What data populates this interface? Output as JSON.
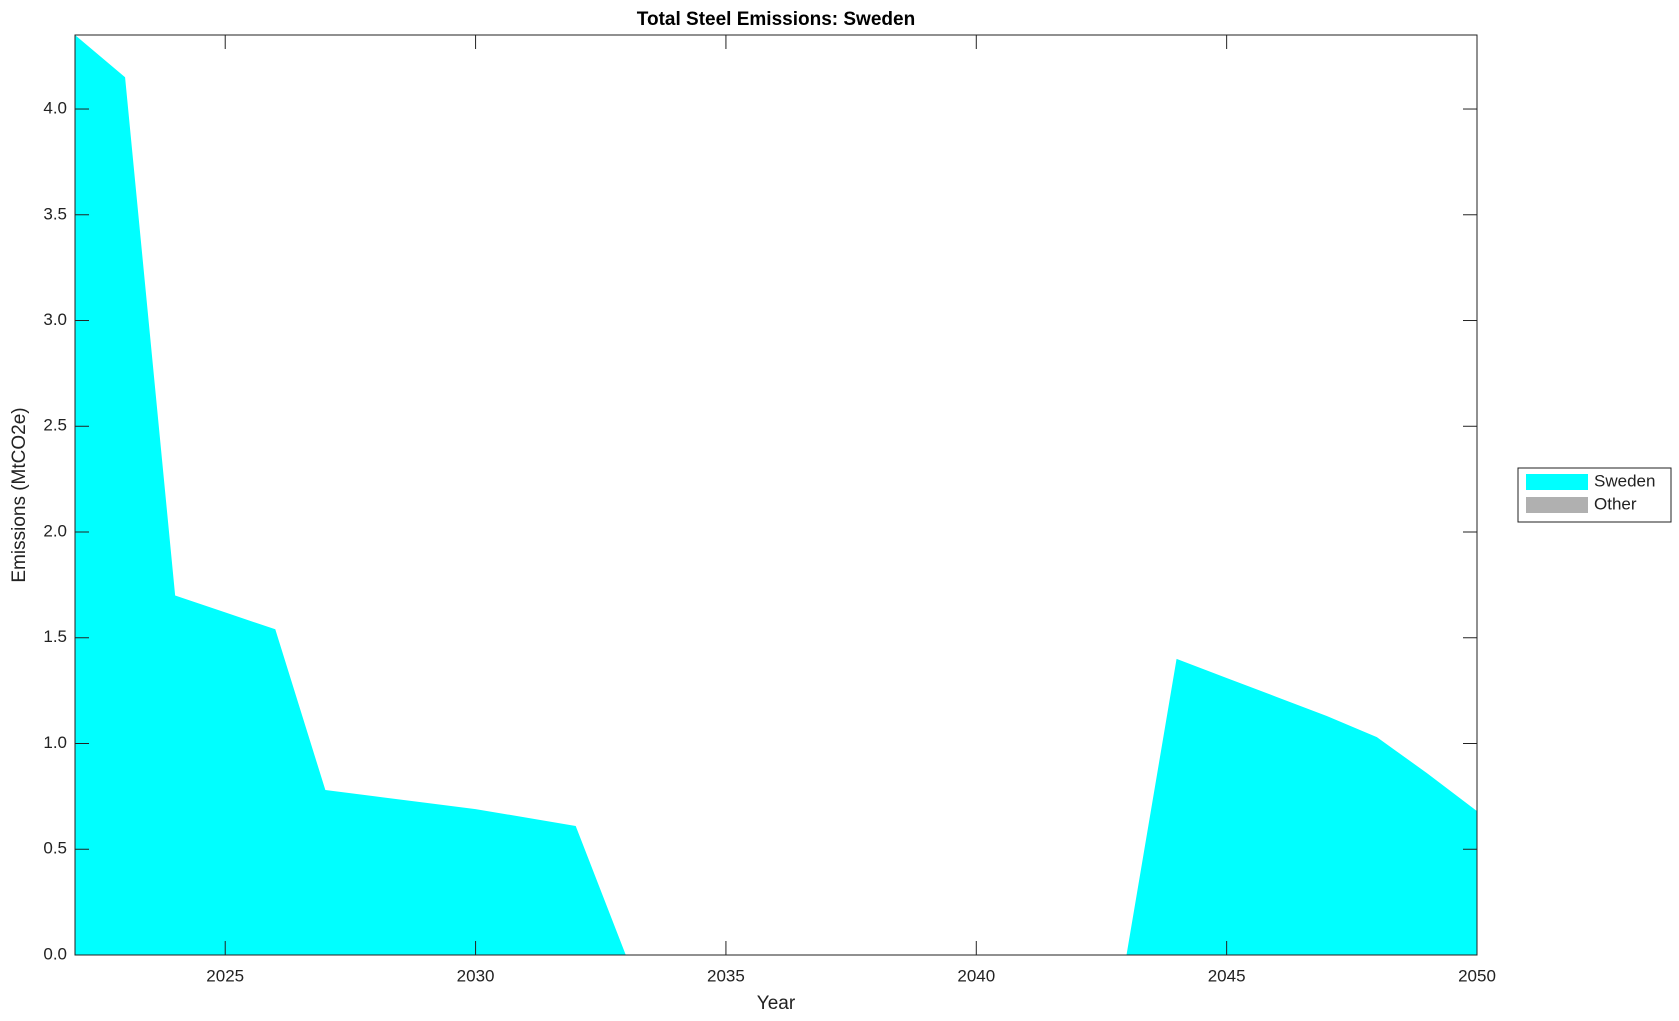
{
  "chart_data": {
    "type": "stacked-area",
    "title": "Total Steel Emissions: Sweden",
    "x_label": "Year",
    "y_label": "Emissions (MtCO2e)",
    "x": [
      2022,
      2023,
      2024,
      2025,
      2026,
      2027,
      2028,
      2029,
      2030,
      2031,
      2032,
      2033,
      2034,
      2035,
      2036,
      2037,
      2038,
      2039,
      2040,
      2041,
      2042,
      2043,
      2044,
      2045,
      2046,
      2047,
      2048,
      2049,
      2050
    ],
    "series": [
      {
        "name": "Sweden",
        "color": "#00ffff",
        "values": [
          4.35,
          4.15,
          1.7,
          1.62,
          1.54,
          0.78,
          0.75,
          0.72,
          0.69,
          0.65,
          0.61,
          0,
          0,
          0,
          0,
          0,
          0,
          0,
          0,
          0,
          0,
          0,
          1.4,
          1.31,
          1.22,
          1.13,
          1.03,
          0.86,
          0.68
        ]
      },
      {
        "name": "Other",
        "color": "#b0b0b0",
        "values": [
          0,
          0,
          0,
          0,
          0,
          0,
          0,
          0,
          0,
          0,
          0,
          0,
          0,
          0,
          0,
          0,
          0,
          0,
          0,
          0,
          0,
          0,
          0,
          0,
          0,
          0,
          0,
          0,
          0
        ]
      }
    ],
    "xlim": [
      2022,
      2050
    ],
    "xticks": [
      2025,
      2030,
      2035,
      2040,
      2045,
      2050
    ],
    "ylim": [
      0,
      4.35
    ],
    "yticks": [
      {
        "value": 0,
        "label": "0.0"
      },
      {
        "value": 0.5,
        "label": "0.5"
      },
      {
        "value": 1,
        "label": "1.0"
      },
      {
        "value": 1.5,
        "label": "1.5"
      },
      {
        "value": 2,
        "label": "2.0"
      },
      {
        "value": 2.5,
        "label": "2.5"
      },
      {
        "value": 3,
        "label": "3.0"
      },
      {
        "value": 3.5,
        "label": "3.5"
      },
      {
        "value": 4,
        "label": "4.0"
      }
    ],
    "grid": false,
    "legend": "east-outside"
  }
}
